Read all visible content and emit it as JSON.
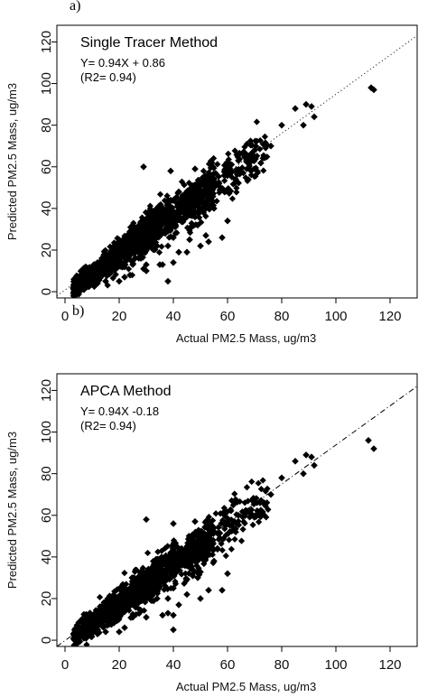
{
  "chart_data": [
    {
      "panel_label": "a)",
      "type": "scatter",
      "title": "Single Tracer Method",
      "equation": "Y= 0.94X + 0.86",
      "r2": "(R2= 0.94)",
      "xlabel": "Actual PM2.5 Mass, ug/m3",
      "ylabel": "Predicted PM2.5 Mass, ug/m3",
      "xlim": [
        -3,
        130
      ],
      "ylim": [
        -3,
        128
      ],
      "xticks": [
        0,
        20,
        40,
        60,
        80,
        100,
        120
      ],
      "yticks": [
        0,
        20,
        40,
        60,
        80,
        100,
        120
      ],
      "fit": {
        "slope": 0.94,
        "intercept": 0.86,
        "style": "dotted"
      },
      "point_marker": "filled-diamond",
      "point_color": "#000000",
      "cloud": [
        [
          2,
          1
        ],
        [
          10,
          8
        ],
        [
          20,
          18
        ],
        [
          30,
          28
        ],
        [
          40,
          37
        ],
        [
          50,
          46
        ],
        [
          60,
          56
        ],
        [
          70,
          65
        ],
        [
          80,
          75
        ],
        [
          90,
          85
        ]
      ],
      "outliers": [
        [
          85,
          88
        ],
        [
          89,
          90
        ],
        [
          91,
          89
        ],
        [
          92,
          84
        ],
        [
          88,
          80
        ],
        [
          80,
          80
        ],
        [
          76,
          70
        ],
        [
          70,
          68
        ],
        [
          68,
          63
        ],
        [
          64,
          63
        ],
        [
          63,
          54
        ],
        [
          60,
          58
        ],
        [
          55,
          54
        ],
        [
          52,
          52
        ],
        [
          50,
          47
        ],
        [
          48,
          59
        ],
        [
          55,
          40
        ],
        [
          49,
          32
        ],
        [
          46,
          25
        ],
        [
          37,
          28
        ],
        [
          35,
          13
        ],
        [
          34,
          22
        ],
        [
          36,
          13
        ],
        [
          40,
          14
        ],
        [
          38,
          22
        ],
        [
          50,
          22
        ],
        [
          52,
          27
        ],
        [
          53,
          24
        ],
        [
          58,
          26
        ],
        [
          60,
          34
        ],
        [
          32,
          21
        ],
        [
          30,
          13
        ],
        [
          28,
          16
        ],
        [
          29,
          11
        ],
        [
          30,
          10
        ],
        [
          25,
          13
        ],
        [
          24,
          8
        ],
        [
          22,
          7
        ],
        [
          20,
          5
        ],
        [
          12,
          4
        ],
        [
          7,
          1
        ],
        [
          38,
          5
        ],
        [
          42,
          19
        ],
        [
          39,
          44
        ],
        [
          29,
          60
        ],
        [
          39,
          58
        ],
        [
          40,
          26
        ],
        [
          25,
          32
        ],
        [
          51,
          42
        ],
        [
          45,
          19
        ],
        [
          60,
          60
        ],
        [
          42,
          48
        ],
        [
          20,
          23
        ],
        [
          15,
          5
        ],
        [
          113,
          98
        ],
        [
          114,
          97
        ]
      ]
    },
    {
      "panel_label": "b)",
      "type": "scatter",
      "title": "APCA Method",
      "equation": "Y= 0.94X -0.18",
      "r2": "(R2= 0.94)",
      "xlabel": "Actual PM2.5 Mass, ug/m3",
      "ylabel": "Predicted PM2.5 Mass, ug/m3",
      "xlim": [
        -3,
        130
      ],
      "ylim": [
        -3,
        128
      ],
      "xticks": [
        0,
        20,
        40,
        60,
        80,
        100,
        120
      ],
      "yticks": [
        0,
        20,
        40,
        60,
        80,
        100,
        120
      ],
      "fit": {
        "slope": 0.94,
        "intercept": -0.18,
        "style": "dashdot"
      },
      "point_marker": "filled-diamond",
      "point_color": "#000000",
      "cloud": [
        [
          2,
          1
        ],
        [
          10,
          8
        ],
        [
          20,
          18
        ],
        [
          30,
          27
        ],
        [
          40,
          36
        ],
        [
          50,
          45
        ],
        [
          60,
          55
        ],
        [
          70,
          64
        ],
        [
          80,
          74
        ],
        [
          90,
          84
        ]
      ],
      "outliers": [
        [
          85,
          86
        ],
        [
          89,
          89
        ],
        [
          91,
          88
        ],
        [
          92,
          84
        ],
        [
          88,
          80
        ],
        [
          80,
          78
        ],
        [
          76,
          70
        ],
        [
          72,
          66
        ],
        [
          68,
          62
        ],
        [
          64,
          60
        ],
        [
          63,
          52
        ],
        [
          60,
          56
        ],
        [
          55,
          54
        ],
        [
          52,
          50
        ],
        [
          50,
          44
        ],
        [
          48,
          57
        ],
        [
          55,
          38
        ],
        [
          49,
          30
        ],
        [
          45,
          22
        ],
        [
          37,
          26
        ],
        [
          36,
          12
        ],
        [
          34,
          20
        ],
        [
          38,
          13
        ],
        [
          40,
          12
        ],
        [
          38,
          20
        ],
        [
          50,
          20
        ],
        [
          53,
          24
        ],
        [
          58,
          24
        ],
        [
          60,
          32
        ],
        [
          32,
          19
        ],
        [
          30,
          11
        ],
        [
          28,
          14
        ],
        [
          25,
          11
        ],
        [
          22,
          6
        ],
        [
          20,
          4
        ],
        [
          12,
          3
        ],
        [
          7,
          1
        ],
        [
          40,
          5
        ],
        [
          42,
          17
        ],
        [
          39,
          42
        ],
        [
          30,
          58
        ],
        [
          40,
          56
        ],
        [
          40,
          25
        ],
        [
          25,
          30
        ],
        [
          51,
          40
        ],
        [
          20,
          21
        ],
        [
          15,
          4
        ],
        [
          112,
          96
        ],
        [
          114,
          92
        ]
      ]
    }
  ]
}
